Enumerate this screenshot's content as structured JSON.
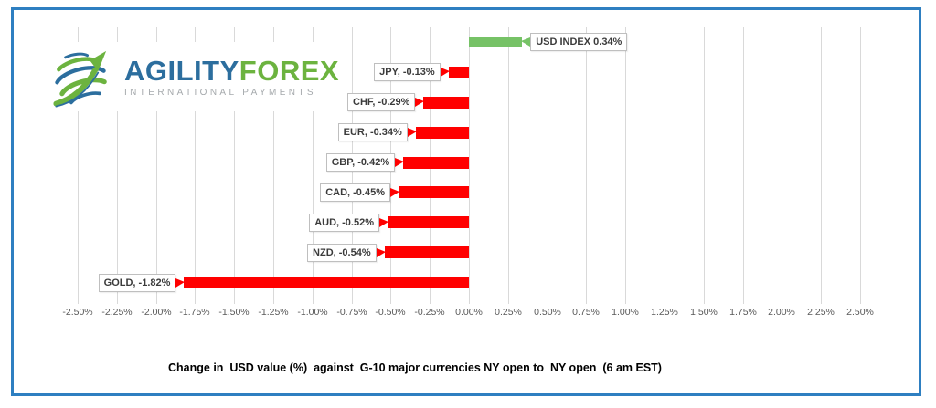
{
  "brand": {
    "name_primary": "AGILITY",
    "name_secondary": "FOREX",
    "tagline": "INTERNATIONAL PAYMENTS"
  },
  "colors": {
    "frame_border": "#2E7FC1",
    "positive_bar": "#76C266",
    "negative_bar": "#FF0000",
    "gridline": "#D9D9D9",
    "tick_label_text": "#595959",
    "callout_border": "#BFBFBF",
    "logo_blue": "#2C6E9E",
    "logo_green": "#6CB33F",
    "tagline_gray": "#A5A9AC"
  },
  "chart_data": {
    "type": "bar",
    "orientation": "horizontal",
    "title": "Change in  USD value (%)  against  G-10 major currencies NY open to  NY open  (6 am EST)",
    "xlabel": "",
    "ylabel": "",
    "xlim": [
      -2.5,
      2.5
    ],
    "x_tick_step": 0.25,
    "x_tick_labels": [
      "-2.50%",
      "-2.25%",
      "-2.00%",
      "-1.75%",
      "-1.50%",
      "-1.25%",
      "-1.00%",
      "-0.75%",
      "-0.50%",
      "-0.25%",
      "0.00%",
      "0.25%",
      "0.50%",
      "0.75%",
      "1.00%",
      "1.25%",
      "1.50%",
      "1.75%",
      "2.00%",
      "2.25%",
      "2.50%"
    ],
    "grid": "vertical",
    "legend": "none",
    "categories": [
      "USD INDEX",
      "JPY",
      "CHF",
      "EUR",
      "GBP",
      "CAD",
      "AUD",
      "NZD",
      "GOLD"
    ],
    "values": [
      0.34,
      -0.13,
      -0.29,
      -0.34,
      -0.42,
      -0.45,
      -0.52,
      -0.54,
      -1.82
    ],
    "data_labels": [
      "USD INDEX 0.34%",
      "JPY, -0.13%",
      "CHF, -0.29%",
      "EUR, -0.34%",
      "GBP, -0.42%",
      "CAD, -0.45%",
      "AUD, -0.52%",
      "NZD, -0.54%",
      "GOLD, -1.82%"
    ]
  }
}
